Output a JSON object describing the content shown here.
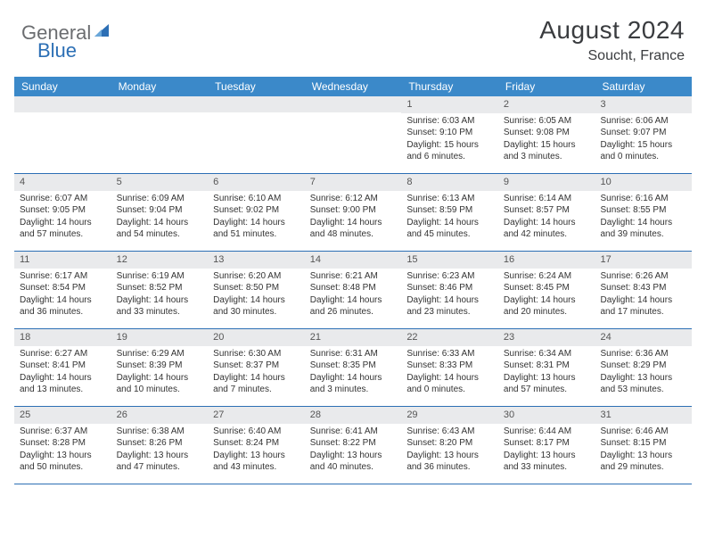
{
  "brand": {
    "part1": "General",
    "part2": "Blue"
  },
  "title": "August 2024",
  "location": "Soucht, France",
  "colors": {
    "header_bg": "#3b89c9",
    "header_text": "#ffffff",
    "daynum_bg": "#e9eaec",
    "rule": "#2c6fb5",
    "title_color": "#3a3c3f",
    "logo_gray": "#6b6d70",
    "logo_blue": "#2c6fb5"
  },
  "day_headers": [
    "Sunday",
    "Monday",
    "Tuesday",
    "Wednesday",
    "Thursday",
    "Friday",
    "Saturday"
  ],
  "weeks": [
    [
      {
        "n": "",
        "sunrise": "",
        "sunset": "",
        "daylight": ""
      },
      {
        "n": "",
        "sunrise": "",
        "sunset": "",
        "daylight": ""
      },
      {
        "n": "",
        "sunrise": "",
        "sunset": "",
        "daylight": ""
      },
      {
        "n": "",
        "sunrise": "",
        "sunset": "",
        "daylight": ""
      },
      {
        "n": "1",
        "sunrise": "Sunrise: 6:03 AM",
        "sunset": "Sunset: 9:10 PM",
        "daylight": "Daylight: 15 hours and 6 minutes."
      },
      {
        "n": "2",
        "sunrise": "Sunrise: 6:05 AM",
        "sunset": "Sunset: 9:08 PM",
        "daylight": "Daylight: 15 hours and 3 minutes."
      },
      {
        "n": "3",
        "sunrise": "Sunrise: 6:06 AM",
        "sunset": "Sunset: 9:07 PM",
        "daylight": "Daylight: 15 hours and 0 minutes."
      }
    ],
    [
      {
        "n": "4",
        "sunrise": "Sunrise: 6:07 AM",
        "sunset": "Sunset: 9:05 PM",
        "daylight": "Daylight: 14 hours and 57 minutes."
      },
      {
        "n": "5",
        "sunrise": "Sunrise: 6:09 AM",
        "sunset": "Sunset: 9:04 PM",
        "daylight": "Daylight: 14 hours and 54 minutes."
      },
      {
        "n": "6",
        "sunrise": "Sunrise: 6:10 AM",
        "sunset": "Sunset: 9:02 PM",
        "daylight": "Daylight: 14 hours and 51 minutes."
      },
      {
        "n": "7",
        "sunrise": "Sunrise: 6:12 AM",
        "sunset": "Sunset: 9:00 PM",
        "daylight": "Daylight: 14 hours and 48 minutes."
      },
      {
        "n": "8",
        "sunrise": "Sunrise: 6:13 AM",
        "sunset": "Sunset: 8:59 PM",
        "daylight": "Daylight: 14 hours and 45 minutes."
      },
      {
        "n": "9",
        "sunrise": "Sunrise: 6:14 AM",
        "sunset": "Sunset: 8:57 PM",
        "daylight": "Daylight: 14 hours and 42 minutes."
      },
      {
        "n": "10",
        "sunrise": "Sunrise: 6:16 AM",
        "sunset": "Sunset: 8:55 PM",
        "daylight": "Daylight: 14 hours and 39 minutes."
      }
    ],
    [
      {
        "n": "11",
        "sunrise": "Sunrise: 6:17 AM",
        "sunset": "Sunset: 8:54 PM",
        "daylight": "Daylight: 14 hours and 36 minutes."
      },
      {
        "n": "12",
        "sunrise": "Sunrise: 6:19 AM",
        "sunset": "Sunset: 8:52 PM",
        "daylight": "Daylight: 14 hours and 33 minutes."
      },
      {
        "n": "13",
        "sunrise": "Sunrise: 6:20 AM",
        "sunset": "Sunset: 8:50 PM",
        "daylight": "Daylight: 14 hours and 30 minutes."
      },
      {
        "n": "14",
        "sunrise": "Sunrise: 6:21 AM",
        "sunset": "Sunset: 8:48 PM",
        "daylight": "Daylight: 14 hours and 26 minutes."
      },
      {
        "n": "15",
        "sunrise": "Sunrise: 6:23 AM",
        "sunset": "Sunset: 8:46 PM",
        "daylight": "Daylight: 14 hours and 23 minutes."
      },
      {
        "n": "16",
        "sunrise": "Sunrise: 6:24 AM",
        "sunset": "Sunset: 8:45 PM",
        "daylight": "Daylight: 14 hours and 20 minutes."
      },
      {
        "n": "17",
        "sunrise": "Sunrise: 6:26 AM",
        "sunset": "Sunset: 8:43 PM",
        "daylight": "Daylight: 14 hours and 17 minutes."
      }
    ],
    [
      {
        "n": "18",
        "sunrise": "Sunrise: 6:27 AM",
        "sunset": "Sunset: 8:41 PM",
        "daylight": "Daylight: 14 hours and 13 minutes."
      },
      {
        "n": "19",
        "sunrise": "Sunrise: 6:29 AM",
        "sunset": "Sunset: 8:39 PM",
        "daylight": "Daylight: 14 hours and 10 minutes."
      },
      {
        "n": "20",
        "sunrise": "Sunrise: 6:30 AM",
        "sunset": "Sunset: 8:37 PM",
        "daylight": "Daylight: 14 hours and 7 minutes."
      },
      {
        "n": "21",
        "sunrise": "Sunrise: 6:31 AM",
        "sunset": "Sunset: 8:35 PM",
        "daylight": "Daylight: 14 hours and 3 minutes."
      },
      {
        "n": "22",
        "sunrise": "Sunrise: 6:33 AM",
        "sunset": "Sunset: 8:33 PM",
        "daylight": "Daylight: 14 hours and 0 minutes."
      },
      {
        "n": "23",
        "sunrise": "Sunrise: 6:34 AM",
        "sunset": "Sunset: 8:31 PM",
        "daylight": "Daylight: 13 hours and 57 minutes."
      },
      {
        "n": "24",
        "sunrise": "Sunrise: 6:36 AM",
        "sunset": "Sunset: 8:29 PM",
        "daylight": "Daylight: 13 hours and 53 minutes."
      }
    ],
    [
      {
        "n": "25",
        "sunrise": "Sunrise: 6:37 AM",
        "sunset": "Sunset: 8:28 PM",
        "daylight": "Daylight: 13 hours and 50 minutes."
      },
      {
        "n": "26",
        "sunrise": "Sunrise: 6:38 AM",
        "sunset": "Sunset: 8:26 PM",
        "daylight": "Daylight: 13 hours and 47 minutes."
      },
      {
        "n": "27",
        "sunrise": "Sunrise: 6:40 AM",
        "sunset": "Sunset: 8:24 PM",
        "daylight": "Daylight: 13 hours and 43 minutes."
      },
      {
        "n": "28",
        "sunrise": "Sunrise: 6:41 AM",
        "sunset": "Sunset: 8:22 PM",
        "daylight": "Daylight: 13 hours and 40 minutes."
      },
      {
        "n": "29",
        "sunrise": "Sunrise: 6:43 AM",
        "sunset": "Sunset: 8:20 PM",
        "daylight": "Daylight: 13 hours and 36 minutes."
      },
      {
        "n": "30",
        "sunrise": "Sunrise: 6:44 AM",
        "sunset": "Sunset: 8:17 PM",
        "daylight": "Daylight: 13 hours and 33 minutes."
      },
      {
        "n": "31",
        "sunrise": "Sunrise: 6:46 AM",
        "sunset": "Sunset: 8:15 PM",
        "daylight": "Daylight: 13 hours and 29 minutes."
      }
    ]
  ]
}
